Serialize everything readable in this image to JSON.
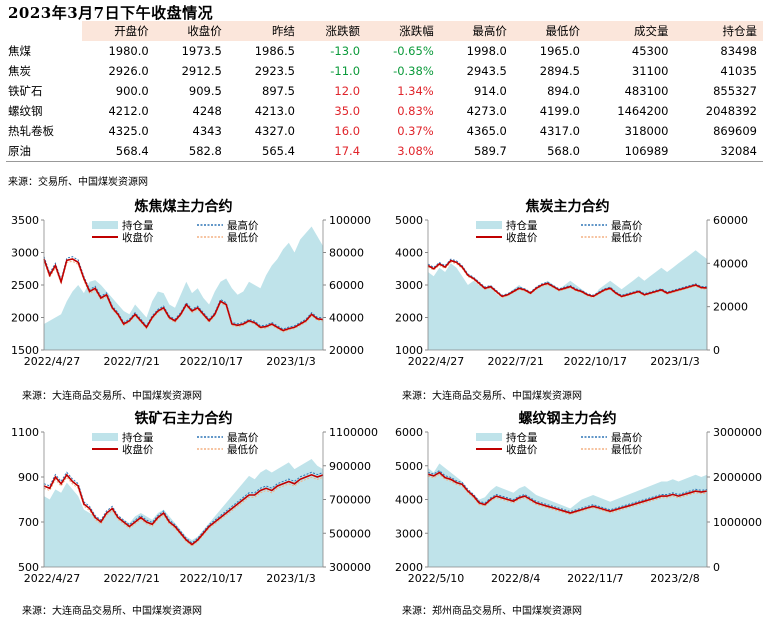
{
  "header": {
    "title": "2023年3月7日下午收盘情况"
  },
  "table": {
    "columns": [
      "",
      "开盘价",
      "收盘价",
      "昨结",
      "涨跌额",
      "涨跌幅",
      "最高价",
      "最低价",
      "成交量",
      "持仓量"
    ],
    "rows": [
      [
        "焦煤",
        "1980.0",
        "1973.5",
        "1986.5",
        "-13.0",
        "-0.65%",
        "1998.0",
        "1965.0",
        "45300",
        "83498"
      ],
      [
        "焦炭",
        "2926.0",
        "2912.5",
        "2923.5",
        "-11.0",
        "-0.38%",
        "2943.5",
        "2894.5",
        "31100",
        "41035"
      ],
      [
        "铁矿石",
        "900.0",
        "909.5",
        "897.5",
        "12.0",
        "1.34%",
        "914.0",
        "894.0",
        "483100",
        "855327"
      ],
      [
        "螺纹钢",
        "4212.0",
        "4248",
        "4213.0",
        "35.0",
        "0.83%",
        "4273.0",
        "4199.0",
        "1464200",
        "2048392"
      ],
      [
        "热轧卷板",
        "4325.0",
        "4343",
        "4327.0",
        "16.0",
        "0.37%",
        "4365.0",
        "4317.0",
        "318000",
        "869609"
      ],
      [
        "原油",
        "568.4",
        "582.8",
        "565.4",
        "17.4",
        "3.08%",
        "589.7",
        "568.0",
        "106989",
        "32084"
      ]
    ],
    "source": "来源：交易所、中国煤炭资源网"
  },
  "colors": {
    "oi_fill": "#bfe3ea",
    "close": "#c00000",
    "high": "#2e75b6",
    "low": "#f4b183",
    "up": "#e0242b",
    "down": "#0a9a3a",
    "header_bg": "#fbe6db"
  },
  "chart_data": [
    {
      "type": "line",
      "title": "炼焦煤主力合约",
      "legend": [
        "持仓量",
        "最高价",
        "收盘价",
        "最低价"
      ],
      "x_ticks": [
        "2022/4/27",
        "2022/7/21",
        "2022/10/17",
        "2023/1/3"
      ],
      "ylim_left": [
        1500,
        3500
      ],
      "yticks_left": [
        1500,
        2000,
        2500,
        3000,
        3500
      ],
      "ylim_right": [
        20000,
        100000
      ],
      "yticks_right": [
        20000,
        40000,
        60000,
        80000,
        100000
      ],
      "close": [
        2900,
        2650,
        2800,
        2550,
        2880,
        2900,
        2850,
        2600,
        2400,
        2450,
        2300,
        2350,
        2150,
        2050,
        1900,
        1950,
        2050,
        1950,
        1850,
        2000,
        2100,
        2150,
        2000,
        1950,
        2050,
        2200,
        2100,
        2150,
        2050,
        1950,
        2050,
        2250,
        2200,
        1900,
        1880,
        1900,
        1950,
        1920,
        1850,
        1860,
        1900,
        1850,
        1800,
        1830,
        1850,
        1900,
        1950,
        2050,
        1980,
        1970
      ],
      "open_interest": [
        36000,
        38000,
        40000,
        42000,
        50000,
        56000,
        60000,
        55000,
        62000,
        63000,
        60000,
        56000,
        52000,
        48000,
        44000,
        42000,
        48000,
        44000,
        40000,
        50000,
        56000,
        55000,
        48000,
        46000,
        54000,
        62000,
        55000,
        58000,
        52000,
        48000,
        56000,
        62000,
        64000,
        58000,
        54000,
        56000,
        62000,
        60000,
        58000,
        66000,
        72000,
        76000,
        82000,
        86000,
        80000,
        88000,
        92000,
        96000,
        90000,
        84000
      ]
    },
    {
      "type": "line",
      "title": "焦炭主力合约",
      "legend": [
        "持仓量",
        "最高价",
        "收盘价",
        "最低价"
      ],
      "x_ticks": [
        "2022/4/27",
        "2022/7/21",
        "2022/10/17",
        "2023/1/3"
      ],
      "ylim_left": [
        1000,
        5000
      ],
      "yticks_left": [
        1000,
        2000,
        3000,
        4000,
        5000
      ],
      "ylim_right": [
        0,
        60000
      ],
      "yticks_right": [
        0,
        20000,
        40000,
        60000
      ],
      "close": [
        3600,
        3500,
        3650,
        3550,
        3750,
        3700,
        3550,
        3300,
        3200,
        3050,
        2900,
        2950,
        2800,
        2650,
        2700,
        2800,
        2900,
        2850,
        2750,
        2900,
        3000,
        3050,
        2950,
        2850,
        2900,
        2950,
        2850,
        2800,
        2700,
        2650,
        2750,
        2850,
        2900,
        2750,
        2650,
        2700,
        2750,
        2800,
        2700,
        2750,
        2800,
        2850,
        2750,
        2800,
        2850,
        2900,
        2950,
        3000,
        2920,
        2910
      ],
      "open_interest": [
        36000,
        34000,
        38000,
        36000,
        40000,
        38000,
        34000,
        30000,
        32000,
        30000,
        28000,
        30000,
        26000,
        24000,
        26000,
        28000,
        30000,
        28000,
        26000,
        28000,
        30000,
        32000,
        30000,
        28000,
        30000,
        32000,
        30000,
        28000,
        26000,
        24000,
        28000,
        30000,
        32000,
        30000,
        28000,
        30000,
        32000,
        34000,
        32000,
        34000,
        36000,
        38000,
        36000,
        38000,
        40000,
        42000,
        44000,
        46000,
        44000,
        42000
      ]
    },
    {
      "type": "line",
      "title": "铁矿石主力合约",
      "legend": [
        "持仓量",
        "最高价",
        "收盘价",
        "最低价"
      ],
      "x_ticks": [
        "2022/4/27",
        "2022/7/21",
        "2022/10/17",
        "2023/1/3"
      ],
      "ylim_left": [
        500,
        1100
      ],
      "yticks_left": [
        500,
        700,
        900,
        1100
      ],
      "ylim_right": [
        300000,
        1100000
      ],
      "yticks_right": [
        300000,
        500000,
        700000,
        900000,
        1100000
      ],
      "close": [
        860,
        850,
        900,
        870,
        910,
        880,
        860,
        780,
        760,
        720,
        700,
        740,
        760,
        720,
        700,
        680,
        700,
        720,
        700,
        690,
        720,
        740,
        700,
        680,
        650,
        620,
        600,
        620,
        650,
        680,
        700,
        720,
        740,
        760,
        780,
        800,
        820,
        820,
        840,
        850,
        840,
        860,
        870,
        880,
        870,
        890,
        900,
        910,
        900,
        909
      ],
      "open_interest": [
        720000,
        700000,
        760000,
        740000,
        800000,
        760000,
        720000,
        640000,
        620000,
        600000,
        580000,
        620000,
        640000,
        600000,
        580000,
        560000,
        600000,
        620000,
        600000,
        580000,
        620000,
        640000,
        600000,
        560000,
        520000,
        480000,
        460000,
        480000,
        520000,
        560000,
        600000,
        640000,
        680000,
        720000,
        760000,
        800000,
        840000,
        820000,
        860000,
        880000,
        860000,
        880000,
        900000,
        920000,
        880000,
        900000,
        920000,
        940000,
        900000,
        880000
      ]
    },
    {
      "type": "line",
      "title": "螺纹钢主力合约",
      "legend": [
        "持仓量",
        "最高价",
        "收盘价",
        "最低价"
      ],
      "x_ticks": [
        "2022/5/10",
        "2022/8/4",
        "2022/11/7",
        "2023/2/8"
      ],
      "ylim_left": [
        2000,
        6000
      ],
      "yticks_left": [
        2000,
        3000,
        4000,
        5000,
        6000
      ],
      "ylim_right": [
        0,
        3000000
      ],
      "yticks_right": [
        0,
        1000000,
        2000000,
        3000000
      ],
      "close": [
        4750,
        4700,
        4800,
        4650,
        4600,
        4500,
        4450,
        4250,
        4100,
        3900,
        3850,
        4000,
        4100,
        4050,
        4000,
        3950,
        4050,
        4100,
        4000,
        3900,
        3850,
        3800,
        3750,
        3700,
        3650,
        3600,
        3650,
        3700,
        3750,
        3800,
        3750,
        3700,
        3650,
        3700,
        3750,
        3800,
        3850,
        3900,
        3950,
        4000,
        4050,
        4100,
        4100,
        4150,
        4100,
        4150,
        4200,
        4250,
        4220,
        4248
      ],
      "open_interest": [
        2200000,
        2100000,
        2300000,
        2200000,
        2100000,
        2000000,
        1900000,
        1700000,
        1600000,
        1500000,
        1550000,
        1700000,
        1800000,
        1750000,
        1700000,
        1650000,
        1750000,
        1800000,
        1700000,
        1600000,
        1550000,
        1500000,
        1450000,
        1400000,
        1350000,
        1300000,
        1400000,
        1500000,
        1550000,
        1600000,
        1550000,
        1500000,
        1450000,
        1500000,
        1550000,
        1600000,
        1650000,
        1700000,
        1750000,
        1800000,
        1850000,
        1900000,
        1900000,
        1950000,
        1900000,
        1950000,
        2000000,
        2050000,
        2000000,
        2048392
      ]
    }
  ],
  "chart_sources": [
    "来源：大连商品交易所、中国煤炭资源网",
    "来源：大连商品交易所、中国煤炭资源网",
    "来源：大连商品交易所、中国煤炭资源网",
    "来源：郑州商品交易所、中国煤炭资源网"
  ]
}
